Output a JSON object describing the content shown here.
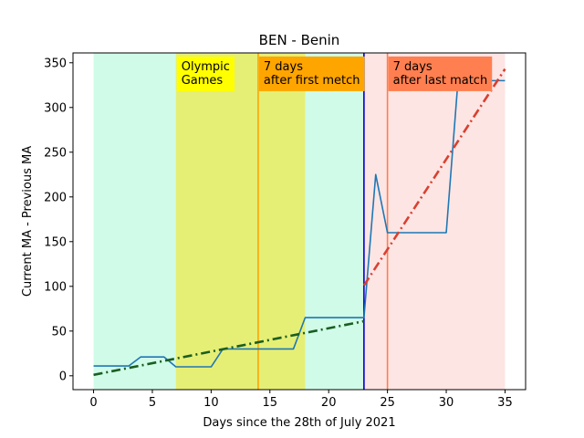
{
  "chart_data": {
    "type": "line",
    "title": "BEN - Benin",
    "xlabel": "Days since the 28th of July 2021",
    "ylabel": "Current MA - Previous MA",
    "xlim": [
      -1.75,
      36.75
    ],
    "ylim": [
      -15.5,
      361
    ],
    "x_ticks": [
      0,
      5,
      10,
      15,
      20,
      25,
      30,
      35
    ],
    "y_ticks": [
      0,
      50,
      100,
      150,
      200,
      250,
      300,
      350
    ],
    "grid": false,
    "series": [
      {
        "color": "#1f77b4",
        "x": [
          0,
          1,
          2,
          3,
          4,
          5,
          6,
          7,
          8,
          9,
          10,
          11,
          12,
          13,
          14,
          15,
          16,
          17,
          18,
          19,
          20,
          21,
          22,
          23,
          24,
          25,
          26,
          27,
          28,
          29,
          30,
          31,
          32,
          33,
          34,
          35
        ],
        "y": [
          11,
          11,
          11,
          11,
          21,
          21,
          21,
          10,
          10,
          10,
          10,
          30,
          30,
          30,
          30,
          30,
          30,
          30,
          65,
          65,
          65,
          65,
          65,
          65,
          225,
          160,
          160,
          160,
          160,
          160,
          160,
          330,
          330,
          330,
          330,
          330
        ]
      }
    ],
    "trend_lines": [
      {
        "color": "#1a5e20",
        "style": "dash-dot",
        "x": [
          0,
          23
        ],
        "y": [
          1,
          61
        ]
      },
      {
        "color": "#d94030",
        "style": "dash-dot",
        "x": [
          23,
          35
        ],
        "y": [
          101,
          343
        ]
      }
    ],
    "regions": [
      {
        "color": "#d0fbe9",
        "x": [
          0,
          23
        ]
      },
      {
        "color": "#e6ef75",
        "x": [
          7,
          18
        ]
      },
      {
        "color": "#fde5e4",
        "x": [
          23,
          35
        ]
      }
    ],
    "vlines": [
      {
        "color": "#ffa500",
        "x": 14
      },
      {
        "color": "#0000cd",
        "x": 23
      },
      {
        "color": "#ff7f50",
        "x": 25
      }
    ],
    "annotations": [
      {
        "lines": [
          "Olympic",
          "Games"
        ],
        "bg": "#ffff00",
        "x": 7,
        "y": 357
      },
      {
        "lines": [
          "7 days",
          "after first metch"
        ],
        "bg": "#ffa500",
        "x": 14,
        "y": 357
      },
      {
        "lines": [
          "7 days",
          "after last match"
        ],
        "bg": "#ff7f50",
        "x": 25,
        "y": 357
      }
    ]
  }
}
